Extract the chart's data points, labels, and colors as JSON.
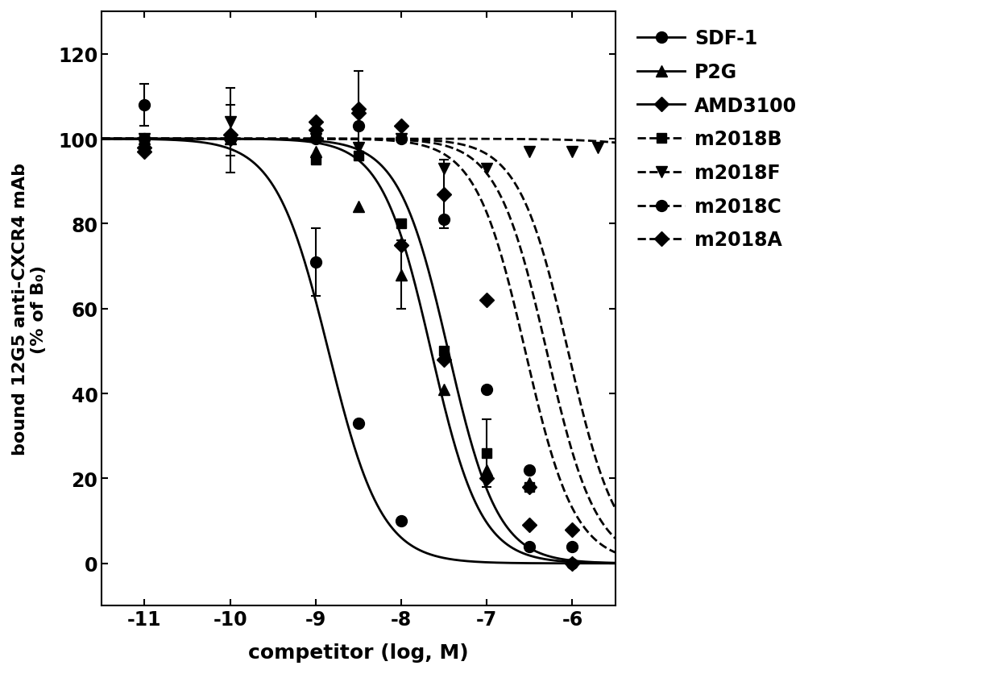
{
  "title": "",
  "xlabel": "competitor (log, M)",
  "ylabel": "bound 12G5 anti-CXCR4 mAb\n(% of B₀)",
  "xlim": [
    -11.5,
    -5.5
  ],
  "ylim": [
    -10,
    130
  ],
  "yticks": [
    0,
    20,
    40,
    60,
    80,
    100,
    120
  ],
  "xticks": [
    -11,
    -10,
    -9,
    -8,
    -7,
    -6
  ],
  "background": "#ffffff",
  "series": [
    {
      "name": "SDF-1",
      "linestyle": "solid",
      "marker": "o",
      "marker_size": 10,
      "color": "#000000",
      "lw": 2.0,
      "ec50_log": -8.85,
      "hill": 1.4,
      "top": 100,
      "bottom": 0,
      "data_x": [
        -11,
        -10,
        -9,
        -8.5,
        -8,
        -7.5,
        -6.5,
        -6
      ],
      "data_y": [
        108,
        100,
        71,
        33,
        10,
        null,
        4,
        0
      ],
      "yerr": [
        5,
        null,
        8,
        null,
        null,
        null,
        null,
        null
      ]
    },
    {
      "name": "P2G",
      "linestyle": "solid",
      "marker": "^",
      "marker_size": 10,
      "color": "#000000",
      "lw": 2.0,
      "ec50_log": -7.65,
      "hill": 1.5,
      "top": 100,
      "bottom": 0,
      "data_x": [
        -11,
        -10,
        -9,
        -8.5,
        -8,
        -7.5,
        -7,
        -6.5
      ],
      "data_y": [
        100,
        100,
        97,
        84,
        68,
        41,
        22,
        19
      ],
      "yerr": [
        null,
        null,
        null,
        null,
        8,
        null,
        null,
        null
      ]
    },
    {
      "name": "AMD3100",
      "linestyle": "solid",
      "marker": "D",
      "marker_size": 9,
      "color": "#000000",
      "lw": 2.0,
      "ec50_log": -7.45,
      "hill": 1.5,
      "top": 100,
      "bottom": 0,
      "data_x": [
        -11,
        -10,
        -9,
        -8.5,
        -8,
        -7.5,
        -7,
        -6.5,
        -6
      ],
      "data_y": [
        97,
        101,
        104,
        106,
        75,
        48,
        20,
        9,
        0
      ],
      "yerr": [
        null,
        null,
        null,
        10,
        null,
        null,
        null,
        null,
        null
      ]
    },
    {
      "name": "m2018B",
      "linestyle": "dashed",
      "marker": "s",
      "marker_size": 9,
      "color": "#000000",
      "lw": 2.0,
      "ec50_log": -6.55,
      "hill": 1.5,
      "top": 100,
      "bottom": 0,
      "data_x": [
        -11,
        -10,
        -9,
        -8.5,
        -8,
        -7.5,
        -7,
        -6.5,
        -6
      ],
      "data_y": [
        100,
        100,
        95,
        96,
        80,
        50,
        26,
        18,
        null
      ],
      "yerr": [
        null,
        8,
        null,
        null,
        null,
        null,
        8,
        null,
        null
      ]
    },
    {
      "name": "m2018F",
      "linestyle": "dashed",
      "marker": "v",
      "marker_size": 10,
      "color": "#000000",
      "lw": 2.0,
      "ec50_log": -4.5,
      "hill": 1.0,
      "top": 100,
      "bottom": 90,
      "data_x": [
        -11,
        -10,
        -9,
        -8.5,
        -8,
        -7.5,
        -7,
        -6.5,
        -6,
        -5.7
      ],
      "data_y": [
        100,
        104,
        100,
        98,
        100,
        93,
        93,
        97,
        97,
        98
      ],
      "yerr": [
        null,
        8,
        null,
        null,
        null,
        null,
        null,
        null,
        null,
        null
      ]
    },
    {
      "name": "m2018C",
      "linestyle": "dashed",
      "marker": "o",
      "marker_size": 10,
      "color": "#000000",
      "lw": 2.0,
      "ec50_log": -6.3,
      "hill": 1.5,
      "top": 100,
      "bottom": 0,
      "data_x": [
        -11,
        -10,
        -9,
        -8.5,
        -8,
        -7.5,
        -7,
        -6.5,
        -6,
        -5.7
      ],
      "data_y": [
        100,
        100,
        100,
        103,
        100,
        81,
        41,
        22,
        4,
        null
      ],
      "yerr": [
        null,
        null,
        null,
        null,
        null,
        null,
        null,
        null,
        null,
        null
      ]
    },
    {
      "name": "m2018A",
      "linestyle": "dashed",
      "marker": "D",
      "marker_size": 9,
      "color": "#000000",
      "lw": 2.0,
      "ec50_log": -6.05,
      "hill": 1.5,
      "top": 100,
      "bottom": 0,
      "data_x": [
        -11,
        -10,
        -9,
        -8.5,
        -8,
        -7.5,
        -7,
        -6.5,
        -6,
        -5.7
      ],
      "data_y": [
        98,
        100,
        102,
        107,
        103,
        87,
        62,
        18,
        8,
        null
      ],
      "yerr": [
        null,
        null,
        null,
        null,
        null,
        8,
        null,
        null,
        null,
        null
      ]
    }
  ]
}
